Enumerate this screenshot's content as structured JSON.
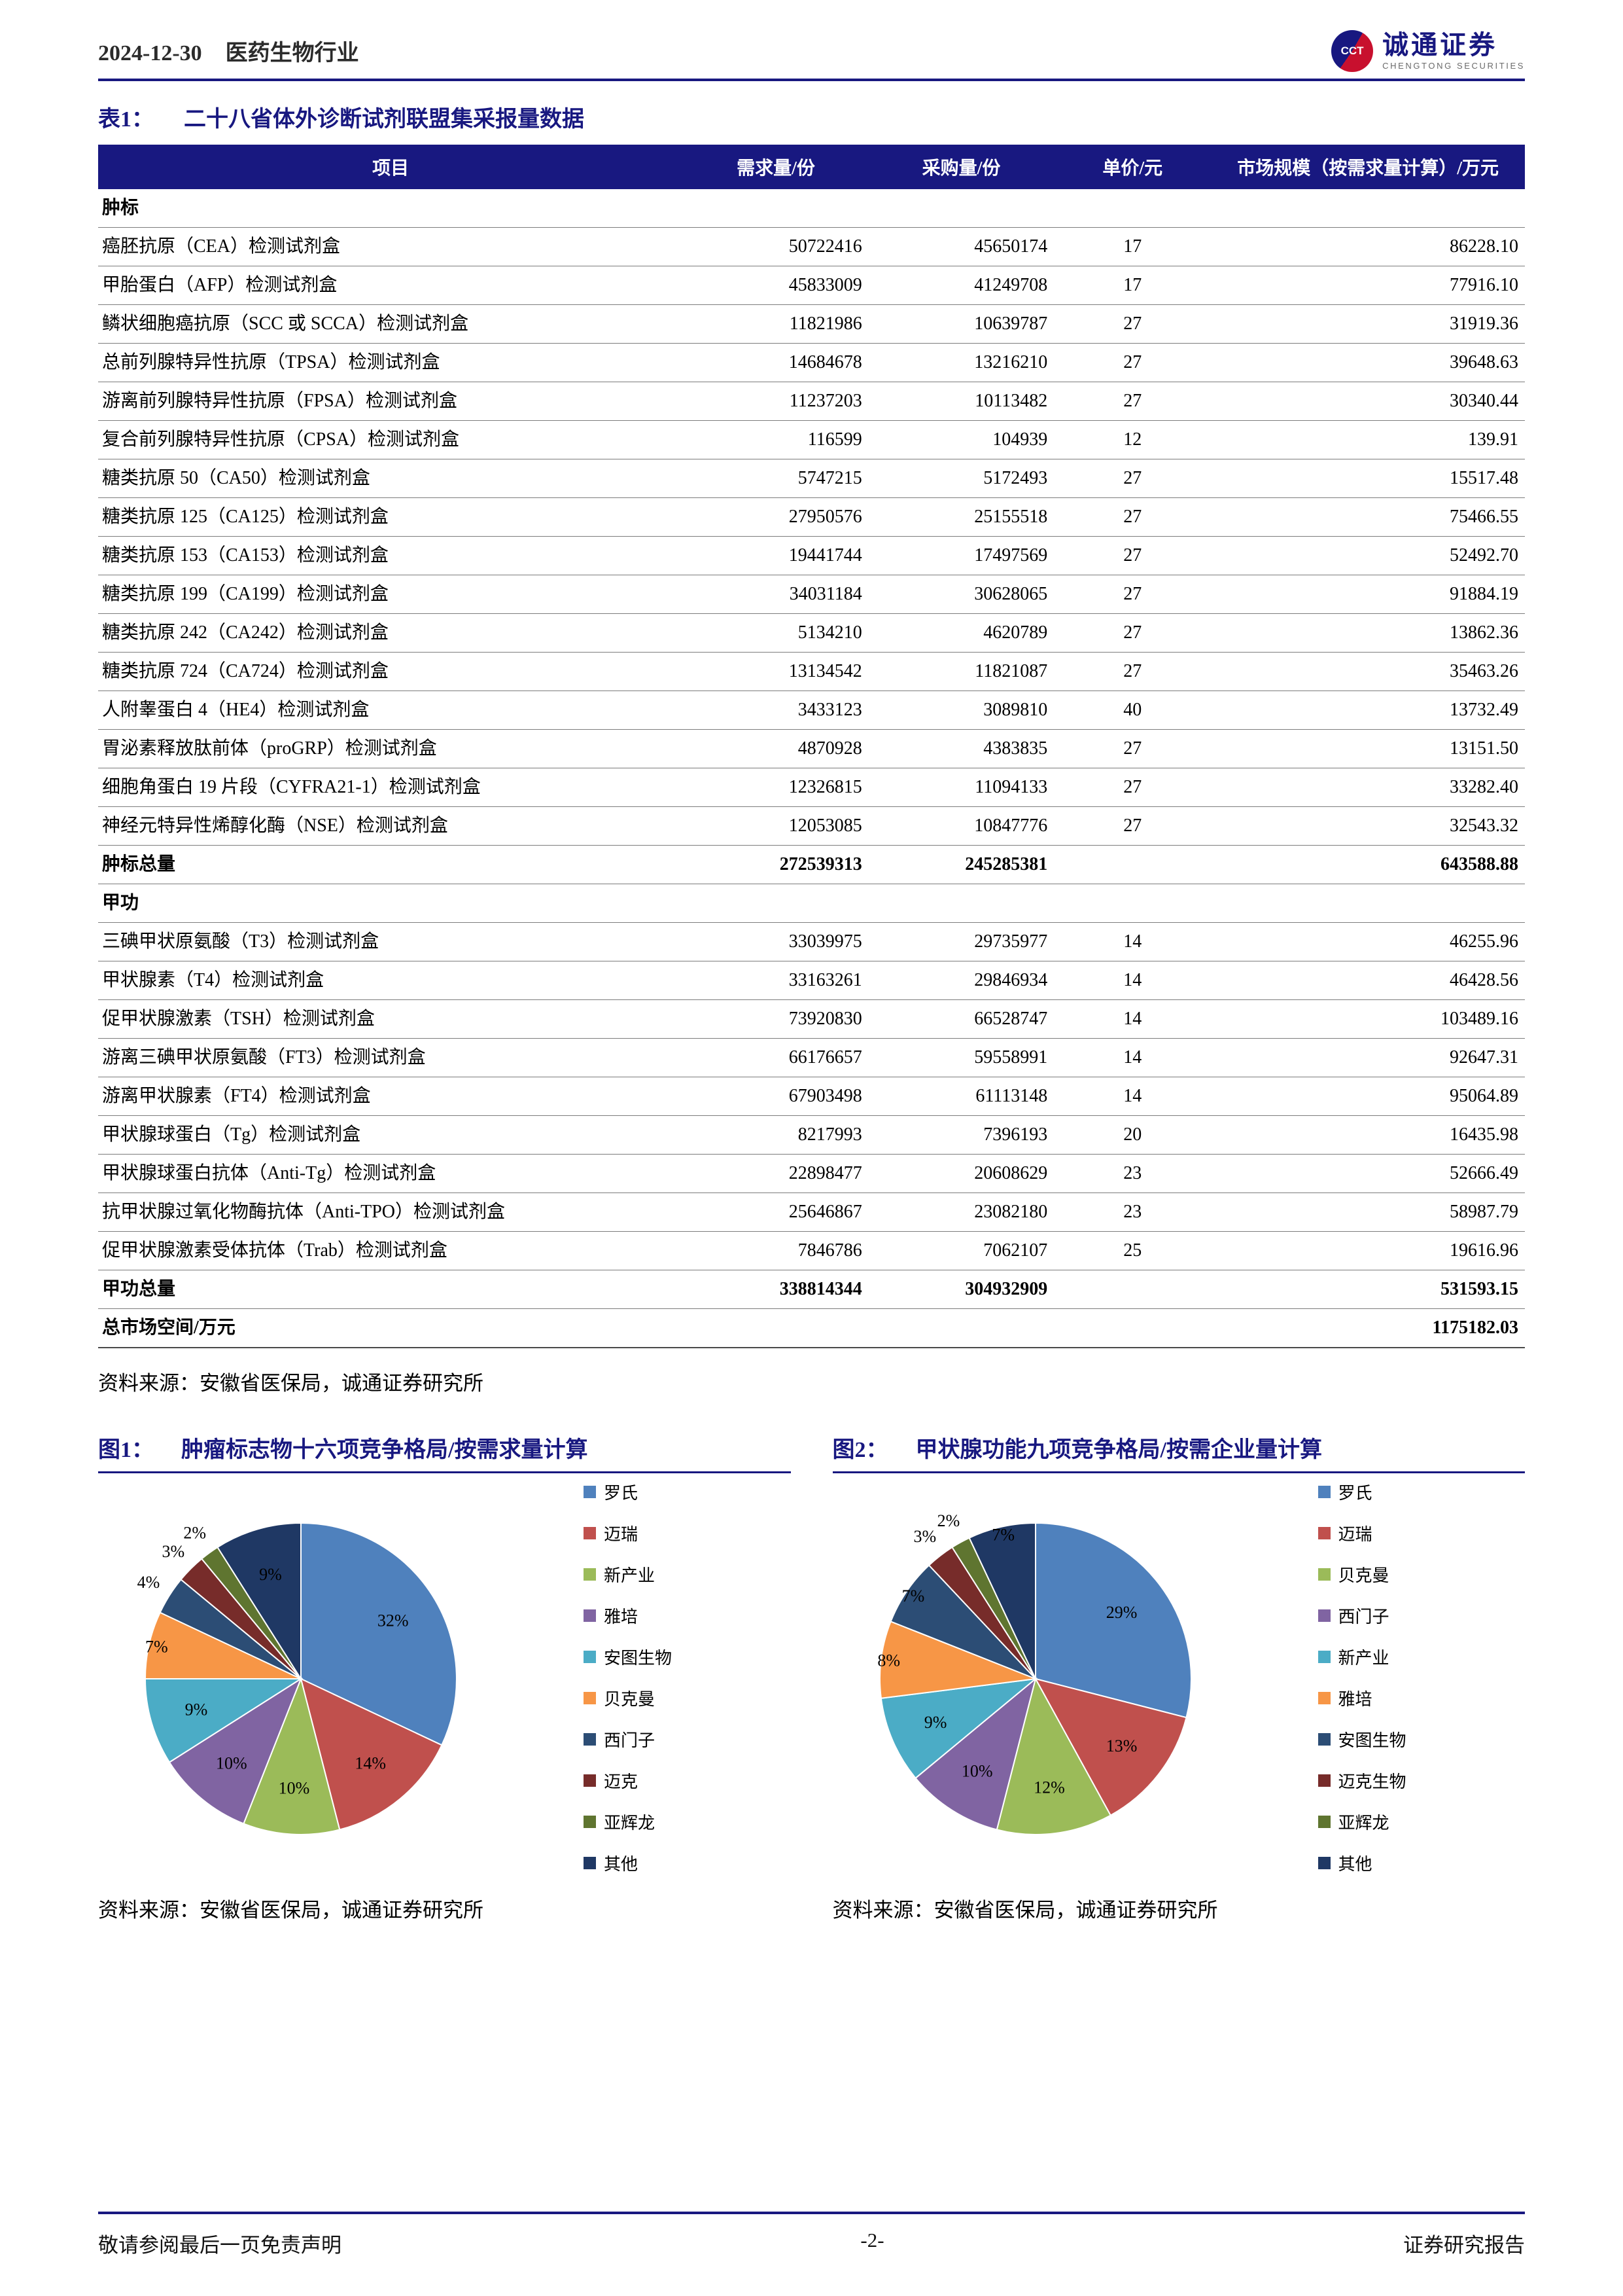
{
  "theme": {
    "navy": "#181880"
  },
  "page": {
    "header": {
      "date": "2024-12-30",
      "industry": "医药生物行业",
      "brand": "诚通证券",
      "brand_sub": "CHENGTONG SECURITIES",
      "brand_badge": "CCT"
    },
    "footer": {
      "left": "敬请参阅最后一页免责声明",
      "center": "-2-",
      "right": "证券研究报告"
    }
  },
  "table1": {
    "title_label": "表1：",
    "title": "二十八省体外诊断试剂联盟集采报量数据",
    "columns": [
      "项目",
      "需求量/份",
      "采购量/份",
      "单价/元",
      "市场规模（按需求量计算）/万元"
    ],
    "sections": [
      {
        "name": "肿标",
        "rows": [
          [
            "癌胚抗原（CEA）检测试剂盒",
            "50722416",
            "45650174",
            "17",
            "86228.10"
          ],
          [
            "甲胎蛋白（AFP）检测试剂盒",
            "45833009",
            "41249708",
            "17",
            "77916.10"
          ],
          [
            "鳞状细胞癌抗原（SCC 或 SCCA）检测试剂盒",
            "11821986",
            "10639787",
            "27",
            "31919.36"
          ],
          [
            "总前列腺特异性抗原（TPSA）检测试剂盒",
            "14684678",
            "13216210",
            "27",
            "39648.63"
          ],
          [
            "游离前列腺特异性抗原（FPSA）检测试剂盒",
            "11237203",
            "10113482",
            "27",
            "30340.44"
          ],
          [
            "复合前列腺特异性抗原（CPSA）检测试剂盒",
            "116599",
            "104939",
            "12",
            "139.91"
          ],
          [
            "糖类抗原 50（CA50）检测试剂盒",
            "5747215",
            "5172493",
            "27",
            "15517.48"
          ],
          [
            "糖类抗原 125（CA125）检测试剂盒",
            "27950576",
            "25155518",
            "27",
            "75466.55"
          ],
          [
            "糖类抗原 153（CA153）检测试剂盒",
            "19441744",
            "17497569",
            "27",
            "52492.70"
          ],
          [
            "糖类抗原 199（CA199）检测试剂盒",
            "34031184",
            "30628065",
            "27",
            "91884.19"
          ],
          [
            "糖类抗原 242（CA242）检测试剂盒",
            "5134210",
            "4620789",
            "27",
            "13862.36"
          ],
          [
            "糖类抗原 724（CA724）检测试剂盒",
            "13134542",
            "11821087",
            "27",
            "35463.26"
          ],
          [
            "人附睾蛋白 4（HE4）检测试剂盒",
            "3433123",
            "3089810",
            "40",
            "13732.49"
          ],
          [
            "胃泌素释放肽前体（proGRP）检测试剂盒",
            "4870928",
            "4383835",
            "27",
            "13151.50"
          ],
          [
            "细胞角蛋白 19 片段（CYFRA21-1）检测试剂盒",
            "12326815",
            "11094133",
            "27",
            "33282.40"
          ],
          [
            "神经元特异性烯醇化酶（NSE）检测试剂盒",
            "12053085",
            "10847776",
            "27",
            "32543.32"
          ]
        ],
        "total": [
          "肿标总量",
          "272539313",
          "245285381",
          "",
          "643588.88"
        ]
      },
      {
        "name": "甲功",
        "rows": [
          [
            "三碘甲状原氨酸（T3）检测试剂盒",
            "33039975",
            "29735977",
            "14",
            "46255.96"
          ],
          [
            "甲状腺素（T4）检测试剂盒",
            "33163261",
            "29846934",
            "14",
            "46428.56"
          ],
          [
            "促甲状腺激素（TSH）检测试剂盒",
            "73920830",
            "66528747",
            "14",
            "103489.16"
          ],
          [
            "游离三碘甲状原氨酸（FT3）检测试剂盒",
            "66176657",
            "59558991",
            "14",
            "92647.31"
          ],
          [
            "游离甲状腺素（FT4）检测试剂盒",
            "67903498",
            "61113148",
            "14",
            "95064.89"
          ],
          [
            "甲状腺球蛋白（Tg）检测试剂盒",
            "8217993",
            "7396193",
            "20",
            "16435.98"
          ],
          [
            "甲状腺球蛋白抗体（Anti-Tg）检测试剂盒",
            "22898477",
            "20608629",
            "23",
            "52666.49"
          ],
          [
            "抗甲状腺过氧化物酶抗体（Anti-TPO）检测试剂盒",
            "25646867",
            "23082180",
            "23",
            "58987.79"
          ],
          [
            "促甲状腺激素受体抗体（Trab）检测试剂盒",
            "7846786",
            "7062107",
            "25",
            "19616.96"
          ]
        ],
        "total": [
          "甲功总量",
          "338814344",
          "304932909",
          "",
          "531593.15"
        ]
      }
    ],
    "grand_total": [
      "总市场空间/万元",
      "",
      "",
      "",
      "1175182.03"
    ],
    "source": "资料来源：安徽省医保局，诚通证券研究所"
  },
  "chart_data": [
    {
      "type": "pie",
      "fig_label": "图1：",
      "title": "肿瘤标志物十六项竞争格局/按需求量计算",
      "categories": [
        "罗氏",
        "迈瑞",
        "新产业",
        "雅培",
        "安图生物",
        "贝克曼",
        "西门子",
        "迈克",
        "亚辉龙",
        "其他"
      ],
      "values": [
        32,
        14,
        10,
        10,
        9,
        7,
        4,
        3,
        2,
        9
      ],
      "colors": [
        "#4F81BD",
        "#C0504D",
        "#9BBB59",
        "#8064A2",
        "#4BACC6",
        "#F79646",
        "#2C4D75",
        "#772C2A",
        "#5F7530",
        "#1F3864"
      ],
      "legend_position": "right",
      "source": "资料来源：安徽省医保局，诚通证券研究所"
    },
    {
      "type": "pie",
      "fig_label": "图2：",
      "title": "甲状腺功能九项竞争格局/按需企业量计算",
      "categories": [
        "罗氏",
        "迈瑞",
        "贝克曼",
        "西门子",
        "新产业",
        "雅培",
        "安图生物",
        "迈克生物",
        "亚辉龙",
        "其他"
      ],
      "values": [
        29,
        13,
        12,
        10,
        9,
        8,
        7,
        3,
        2,
        7
      ],
      "colors": [
        "#4F81BD",
        "#C0504D",
        "#9BBB59",
        "#8064A2",
        "#4BACC6",
        "#F79646",
        "#2C4D75",
        "#772C2A",
        "#5F7530",
        "#1F3864"
      ],
      "legend_position": "right",
      "source": "资料来源：安徽省医保局，诚通证券研究所"
    }
  ]
}
